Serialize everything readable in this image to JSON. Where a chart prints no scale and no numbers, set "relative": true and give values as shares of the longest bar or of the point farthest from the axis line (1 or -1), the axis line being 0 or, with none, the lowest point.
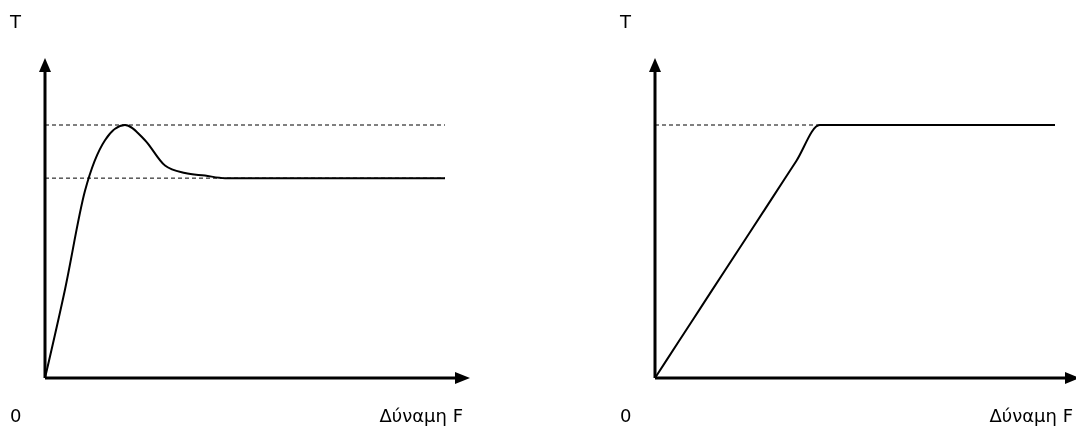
{
  "chart_data": [
    {
      "type": "line",
      "relative": true,
      "ylabel": "T",
      "xlabel": "Δύναμη F",
      "annotations": [
        "0"
      ],
      "color": "#000000",
      "marker": "none",
      "line_style": "solid",
      "categories": [
        null,
        null,
        null,
        null,
        null,
        null,
        null,
        null,
        null,
        null,
        null,
        null,
        null,
        null,
        null,
        null,
        null,
        null,
        null,
        null,
        null
      ],
      "values": [
        0,
        0.35,
        0.74,
        0.94,
        1,
        0.94,
        0.84,
        0.81,
        0.8,
        0.79,
        0.79,
        0.79,
        0.79,
        0.79,
        0.79,
        0.79,
        0.79,
        0.79,
        0.79,
        0.79,
        0.79
      ],
      "ref_lines": [
        {
          "axis": "y",
          "value": 1,
          "line_style": "dashed",
          "color": "#000000"
        },
        {
          "axis": "y",
          "value": 0.79,
          "line_style": "dashed",
          "color": "#000000"
        }
      ]
    },
    {
      "type": "line",
      "relative": true,
      "ylabel": "T",
      "xlabel": "Δύναμη F",
      "annotations": [
        "0"
      ],
      "color": "#000000",
      "marker": "none",
      "line_style": "solid",
      "categories": [
        null,
        null,
        null,
        null,
        null,
        null,
        null,
        null,
        null,
        null,
        null,
        null,
        null,
        null,
        null,
        null,
        null,
        null
      ],
      "values": [
        0,
        0.143,
        0.286,
        0.429,
        0.571,
        0.714,
        0.857,
        1,
        1,
        1,
        1,
        1,
        1,
        1,
        1,
        1,
        1,
        1
      ],
      "ref_lines": [
        {
          "axis": "y",
          "value": 1,
          "line_style": "dashed",
          "color": "#000000"
        }
      ]
    }
  ]
}
